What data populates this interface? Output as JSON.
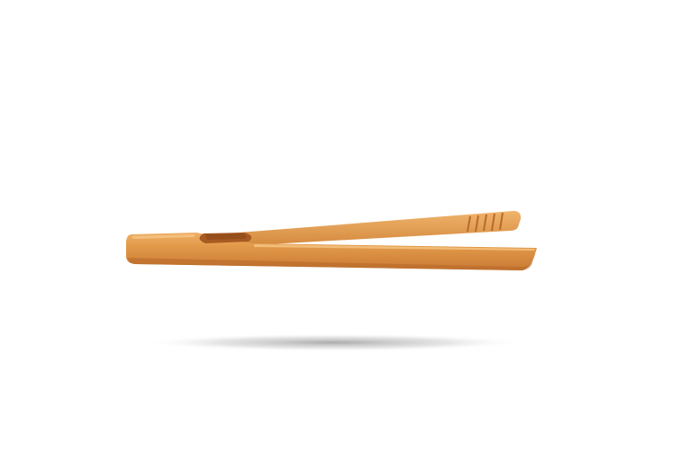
{
  "colors": {
    "background": "#ffffff",
    "wood_light": "#e8a65a",
    "wood_mid": "#d98c3c",
    "wood_dark": "#b8692a",
    "shadow": "#9a9a9a"
  }
}
